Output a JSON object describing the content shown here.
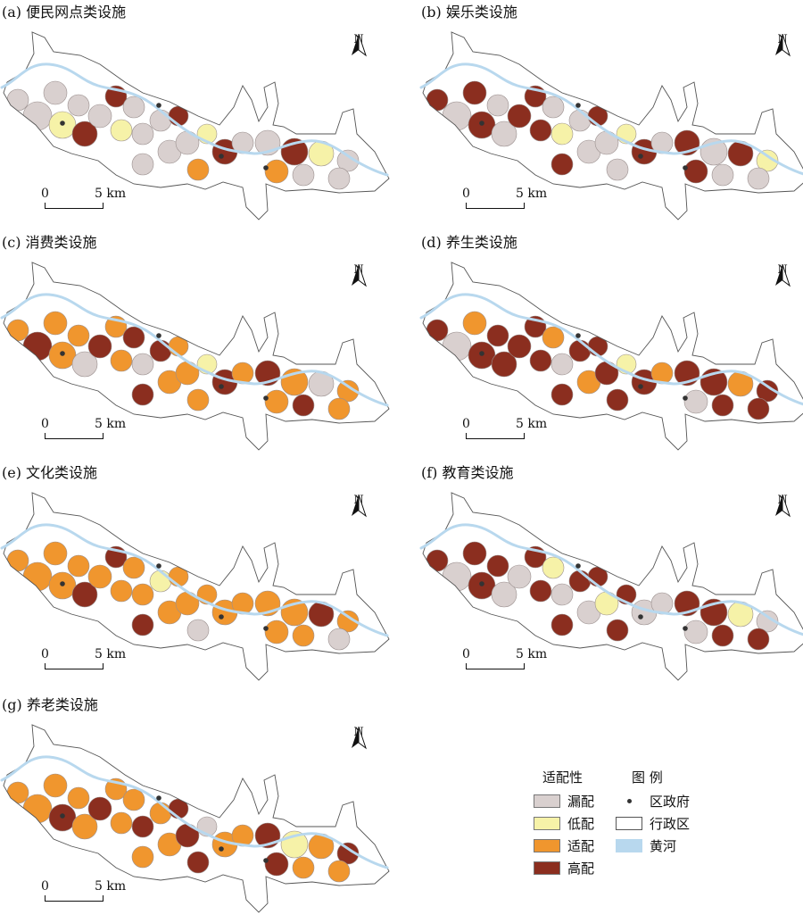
{
  "panels": [
    {
      "id": "a",
      "title": "(a) 便民网点类设施",
      "pattern": [
        "s",
        "s",
        "l",
        "h",
        "s",
        "s",
        "s",
        "h",
        "s",
        "l",
        "s",
        "s",
        "h",
        "s",
        "s",
        "s",
        "l",
        "h",
        "m",
        "s",
        "s",
        "h",
        "l",
        "s",
        "s",
        "m",
        "s"
      ]
    },
    {
      "id": "b",
      "title": "(b) 娱乐类设施",
      "pattern": [
        "h",
        "s",
        "h",
        "s",
        "h",
        "s",
        "h",
        "h",
        "s",
        "h",
        "l",
        "s",
        "h",
        "s",
        "h",
        "s",
        "l",
        "h",
        "s",
        "s",
        "h",
        "s",
        "h",
        "l",
        "s",
        "h",
        "s"
      ]
    },
    {
      "id": "c",
      "title": "(c) 消费类设施",
      "pattern": [
        "m",
        "h",
        "m",
        "s",
        "m",
        "m",
        "h",
        "m",
        "h",
        "m",
        "s",
        "h",
        "m",
        "m",
        "h",
        "m",
        "l",
        "h",
        "m",
        "m",
        "h",
        "m",
        "s",
        "m",
        "h",
        "m",
        "m"
      ]
    },
    {
      "id": "d",
      "title": "(d) 养生类设施",
      "pattern": [
        "h",
        "s",
        "h",
        "h",
        "m",
        "h",
        "h",
        "h",
        "m",
        "h",
        "s",
        "h",
        "h",
        "m",
        "h",
        "h",
        "l",
        "h",
        "h",
        "m",
        "h",
        "h",
        "m",
        "h",
        "h",
        "s",
        "h"
      ]
    },
    {
      "id": "e",
      "title": "(e) 文化类设施",
      "pattern": [
        "m",
        "m",
        "m",
        "h",
        "m",
        "m",
        "m",
        "h",
        "m",
        "m",
        "m",
        "l",
        "m",
        "m",
        "h",
        "m",
        "m",
        "m",
        "s",
        "m",
        "m",
        "m",
        "h",
        "m",
        "m",
        "m",
        "s"
      ]
    },
    {
      "id": "f",
      "title": "(f) 教育类设施",
      "pattern": [
        "h",
        "s",
        "h",
        "s",
        "h",
        "h",
        "s",
        "h",
        "l",
        "h",
        "s",
        "h",
        "h",
        "s",
        "h",
        "l",
        "h",
        "s",
        "h",
        "s",
        "h",
        "h",
        "l",
        "s",
        "h",
        "s",
        "h"
      ]
    },
    {
      "id": "g",
      "title": "(g) 养老类设施",
      "pattern": [
        "m",
        "m",
        "h",
        "m",
        "m",
        "m",
        "h",
        "m",
        "m",
        "m",
        "h",
        "m",
        "h",
        "m",
        "m",
        "h",
        "s",
        "m",
        "h",
        "m",
        "h",
        "l",
        "m",
        "h",
        "m",
        "h",
        "m"
      ]
    }
  ],
  "scale": {
    "zero": "0",
    "distance": "5 km"
  },
  "north_label": "N",
  "legend": {
    "suitability_title": "适配性",
    "symbols_title": "图 例",
    "classes": [
      {
        "label": "漏配",
        "color": "#d9d0cf"
      },
      {
        "label": "低配",
        "color": "#f6f2a8"
      },
      {
        "label": "适配",
        "color": "#f0962e"
      },
      {
        "label": "高配",
        "color": "#8b2e1f"
      }
    ],
    "symbols": [
      {
        "label": "区政府",
        "icon": "dot-icon"
      },
      {
        "label": "行政区",
        "icon": "outline-box-icon"
      },
      {
        "label": "黄河",
        "icon": "river-line-icon"
      }
    ]
  },
  "colors": {
    "missing": "#d9d0cf",
    "low": "#f6f2a8",
    "suitable": "#f0962e",
    "high": "#8b2e1f",
    "river": "#b8d8ee",
    "outline": "#555555"
  }
}
